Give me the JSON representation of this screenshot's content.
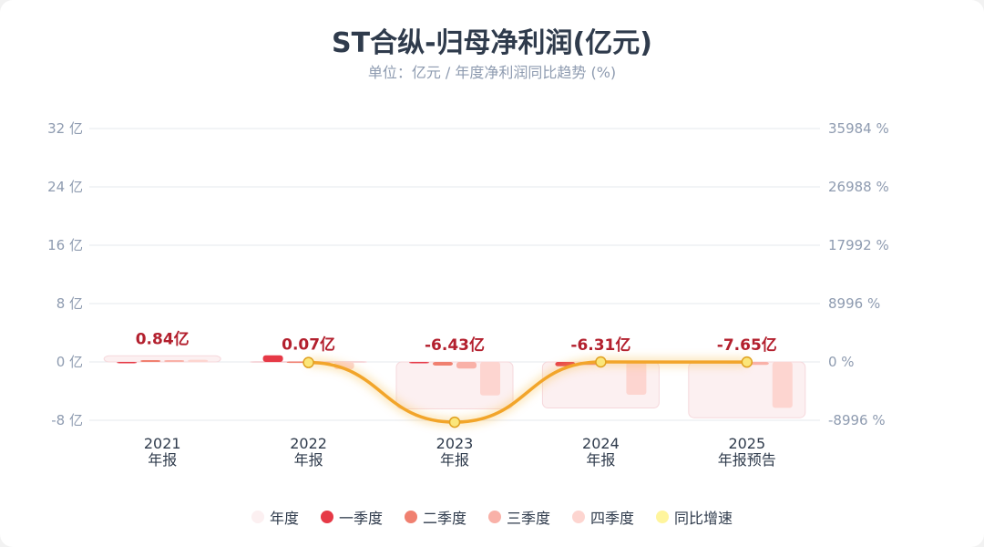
{
  "chart_data": {
    "type": "bar",
    "title": "ST合纵-归母净利润(亿元)",
    "subtitle": "单位：亿元 / 年度净利润同比趋势 (%)",
    "categories": [
      [
        "2021",
        "年报"
      ],
      [
        "2022",
        "年报"
      ],
      [
        "2023",
        "年报"
      ],
      [
        "2024",
        "年报"
      ],
      [
        "2025",
        "年报预告"
      ]
    ],
    "y_left": {
      "ticks": [
        -8,
        0,
        8,
        16,
        24,
        32
      ],
      "labels": [
        "-8 亿",
        "0 亿",
        "8 亿",
        "16 亿",
        "24 亿",
        "32 亿"
      ],
      "range": [
        -8,
        32
      ]
    },
    "y_right": {
      "ticks": [
        -8996,
        0,
        8996,
        17992,
        26988,
        35984
      ],
      "labels": [
        "-8996 %",
        "0 %",
        "8996 %",
        "17992 %",
        "26988 %",
        "35984 %"
      ],
      "range": [
        -8996,
        35984
      ]
    },
    "series": [
      {
        "name": "年度",
        "values": [
          0.84,
          0.07,
          -6.43,
          -6.31,
          -7.65
        ],
        "labels": [
          "0.84亿",
          "0.07亿",
          "-6.43亿",
          "-6.31亿",
          "-7.65亿"
        ],
        "color": "#fcf0f1"
      },
      {
        "name": "一季度",
        "values": [
          0.0,
          0.9,
          -0.1,
          -0.6,
          -0.1
        ],
        "color": "#e63946"
      },
      {
        "name": "二季度",
        "values": [
          0.25,
          0.05,
          -0.5,
          -0.4,
          -0.2
        ],
        "color": "#f08070"
      },
      {
        "name": "三季度",
        "values": [
          0.25,
          0.0,
          -0.9,
          -0.1,
          -0.4
        ],
        "color": "#f9b1a8"
      },
      {
        "name": "四季度",
        "values": [
          0.3,
          -1.0,
          -4.6,
          -4.5,
          -6.3
        ],
        "color": "#fdd5d0"
      },
      {
        "name": "同比增速",
        "type": "line",
        "values": [
          null,
          -91.7,
          -9286,
          1.9,
          -21.2
        ],
        "color": "#f2a52a",
        "marker": "#fbe67a"
      }
    ],
    "grid": true,
    "legend": "bottom"
  }
}
